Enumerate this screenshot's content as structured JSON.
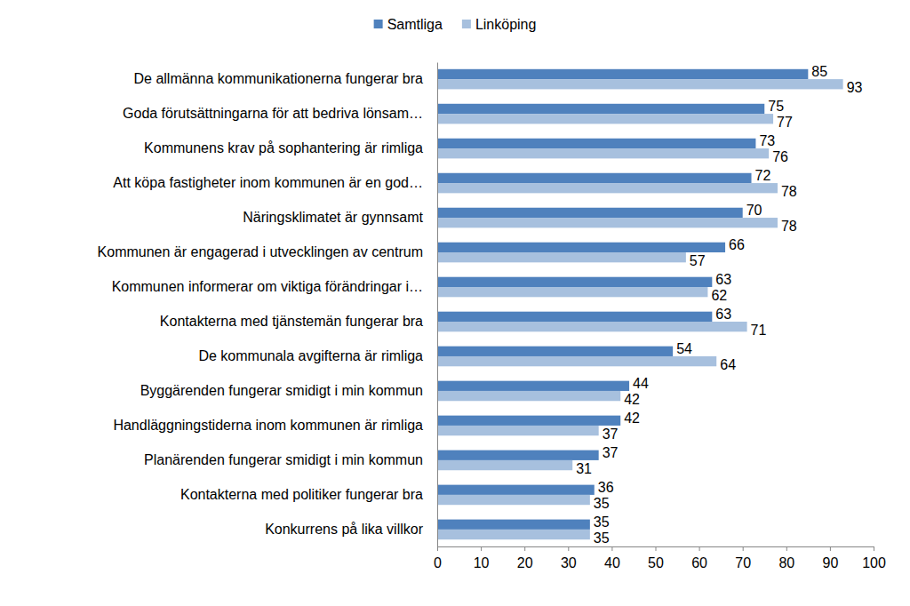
{
  "chart_data": {
    "type": "bar",
    "orientation": "horizontal",
    "categories": [
      "De allmänna kommunikationerna fungerar bra",
      "Goda förutsättningarna för att bedriva lönsam…",
      "Kommunens krav på sophantering är rimliga",
      "Att köpa fastigheter inom kommunen är en god…",
      "Näringsklimatet är gynnsamt",
      "Kommunen är engagerad i utvecklingen av centrum",
      "Kommunen informerar om viktiga förändringar i…",
      "Kontakterna med tjänstemän fungerar bra",
      "De kommunala avgifterna är rimliga",
      "Byggärenden fungerar smidigt i min kommun",
      "Handläggningstiderna inom kommunen är rimliga",
      "Planärenden fungerar smidigt i min kommun",
      "Kontakterna med politiker fungerar bra",
      "Konkurrens på lika villkor"
    ],
    "series": [
      {
        "name": "Samtliga",
        "color": "#4f81bd",
        "values": [
          85,
          75,
          73,
          72,
          70,
          66,
          63,
          63,
          54,
          44,
          42,
          37,
          36,
          35
        ]
      },
      {
        "name": "Linköping",
        "color": "#a7c0de",
        "values": [
          93,
          77,
          76,
          78,
          78,
          57,
          62,
          71,
          64,
          42,
          37,
          31,
          35,
          35
        ]
      }
    ],
    "xlim": [
      0,
      100
    ],
    "xticks": [
      0,
      10,
      20,
      30,
      40,
      50,
      60,
      70,
      80,
      90,
      100
    ],
    "grid": false,
    "legend": "top",
    "data_labels": true
  }
}
